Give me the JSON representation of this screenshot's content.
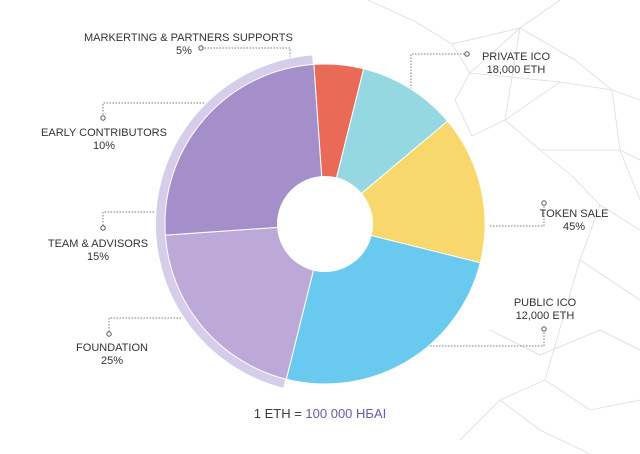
{
  "chart_data": {
    "type": "pie",
    "slices": [
      {
        "label": "MARKERTING & PARTNERS SUPPORTS",
        "value": 5,
        "pct_text": "5%",
        "color": "#ea6a58"
      },
      {
        "label": "EARLY CONTRIBUTORS",
        "value": 10,
        "pct_text": "10%",
        "color": "#96d8e2"
      },
      {
        "label": "TEAM & ADVISORS",
        "value": 15,
        "pct_text": "15%",
        "color": "#f8d76c"
      },
      {
        "label": "FOUNDATION",
        "value": 25,
        "pct_text": "25%",
        "color": "#6ac9ee"
      },
      {
        "label": "PUBLIC ICO",
        "value": 20,
        "sub_text": "12,000 ETH",
        "color": "#bca9d8"
      },
      {
        "label": "PRIVATE ICO",
        "value": 25,
        "sub_text": "18,000 ETH",
        "color": "#a58fca"
      }
    ],
    "group": {
      "label": "TOKEN SALE",
      "pct_text": "45%",
      "value": 45,
      "members": [
        "PUBLIC ICO",
        "PRIVATE ICO"
      ],
      "ring_color": "#d6cdea"
    }
  },
  "footer": {
    "prefix": "1 ETH = ",
    "value": "100 000 HБAI"
  }
}
